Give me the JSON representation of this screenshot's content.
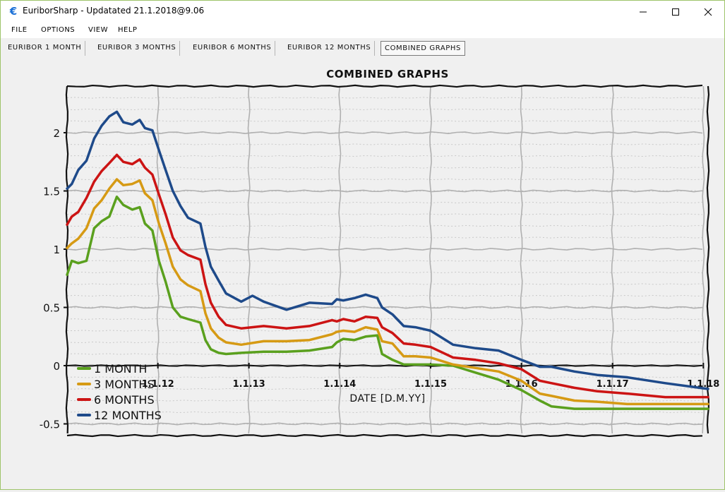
{
  "window": {
    "title": "EuriborSharp - Updatated 21.1.2018@9.06",
    "app_icon_glyph": "€"
  },
  "menu": {
    "items": [
      "FILE",
      "OPTIONS",
      "VIEW",
      "HELP"
    ]
  },
  "tabs": [
    {
      "label": "EURIBOR 1 MONTH",
      "selected": false
    },
    {
      "label": "EURIBOR 3 MONTHS",
      "selected": false
    },
    {
      "label": "EURIBOR 6 MONTHS",
      "selected": false
    },
    {
      "label": "EURIBOR 12 MONTHS",
      "selected": false
    },
    {
      "label": "COMBINED GRAPHS",
      "selected": true
    }
  ],
  "chart_data": {
    "type": "line",
    "title": "COMBINED GRAPHS",
    "xlabel": "DATE [D.M.YY]",
    "ylabel": "",
    "xlim": [
      "2011-01-01",
      "2018-01-20"
    ],
    "ylim": [
      -0.6,
      2.4
    ],
    "x_ticks": [
      {
        "date": "2012-01-01",
        "label": "1.1.12"
      },
      {
        "date": "2013-01-01",
        "label": "1.1.13"
      },
      {
        "date": "2014-01-01",
        "label": "1.1.14"
      },
      {
        "date": "2015-01-01",
        "label": "1.1.15"
      },
      {
        "date": "2016-01-01",
        "label": "1.1.16"
      },
      {
        "date": "2017-01-01",
        "label": "1.1.17"
      },
      {
        "date": "2018-01-01",
        "label": "1.1.18"
      }
    ],
    "y_ticks": [
      {
        "value": 2,
        "label": "2"
      },
      {
        "value": 1.5,
        "label": "1.5"
      },
      {
        "value": 1,
        "label": "1"
      },
      {
        "value": 0.5,
        "label": "0.5"
      },
      {
        "value": 0,
        "label": "0"
      },
      {
        "value": -0.5,
        "label": "-0.5"
      }
    ],
    "grid": true,
    "legend_position": "bottom-left",
    "series": [
      {
        "name": "1 MONTH",
        "color": "#5aa01e",
        "points": [
          [
            "2011-01-01",
            0.78
          ],
          [
            "2011-01-20",
            0.9
          ],
          [
            "2011-02-15",
            0.88
          ],
          [
            "2011-03-20",
            0.9
          ],
          [
            "2011-04-20",
            1.18
          ],
          [
            "2011-05-20",
            1.24
          ],
          [
            "2011-06-20",
            1.28
          ],
          [
            "2011-07-20",
            1.45
          ],
          [
            "2011-08-15",
            1.38
          ],
          [
            "2011-09-20",
            1.34
          ],
          [
            "2011-10-20",
            1.36
          ],
          [
            "2011-11-10",
            1.22
          ],
          [
            "2011-12-10",
            1.16
          ],
          [
            "2012-01-05",
            0.9
          ],
          [
            "2012-02-01",
            0.72
          ],
          [
            "2012-03-01",
            0.5
          ],
          [
            "2012-04-01",
            0.42
          ],
          [
            "2012-05-01",
            0.4
          ],
          [
            "2012-06-20",
            0.37
          ],
          [
            "2012-07-10",
            0.22
          ],
          [
            "2012-08-01",
            0.14
          ],
          [
            "2012-09-01",
            0.11
          ],
          [
            "2012-10-01",
            0.1
          ],
          [
            "2012-12-01",
            0.11
          ],
          [
            "2013-03-01",
            0.12
          ],
          [
            "2013-06-01",
            0.12
          ],
          [
            "2013-09-01",
            0.13
          ],
          [
            "2013-12-01",
            0.16
          ],
          [
            "2013-12-20",
            0.2
          ],
          [
            "2014-01-15",
            0.23
          ],
          [
            "2014-03-01",
            0.22
          ],
          [
            "2014-04-15",
            0.25
          ],
          [
            "2014-06-01",
            0.26
          ],
          [
            "2014-06-20",
            0.1
          ],
          [
            "2014-08-01",
            0.05
          ],
          [
            "2014-09-15",
            0.01
          ],
          [
            "2014-11-01",
            0.01
          ],
          [
            "2015-01-01",
            0.01
          ],
          [
            "2015-04-01",
            0.0
          ],
          [
            "2015-07-01",
            -0.06
          ],
          [
            "2015-10-01",
            -0.12
          ],
          [
            "2016-01-01",
            -0.21
          ],
          [
            "2016-03-15",
            -0.3
          ],
          [
            "2016-05-01",
            -0.35
          ],
          [
            "2016-08-01",
            -0.37
          ],
          [
            "2016-11-01",
            -0.37
          ],
          [
            "2017-03-01",
            -0.37
          ],
          [
            "2017-08-01",
            -0.37
          ],
          [
            "2018-01-20",
            -0.37
          ]
        ]
      },
      {
        "name": "3 MONTHS",
        "color": "#d69a14",
        "points": [
          [
            "2011-01-01",
            1.01
          ],
          [
            "2011-01-20",
            1.05
          ],
          [
            "2011-02-15",
            1.09
          ],
          [
            "2011-03-20",
            1.18
          ],
          [
            "2011-04-20",
            1.35
          ],
          [
            "2011-05-20",
            1.42
          ],
          [
            "2011-06-20",
            1.52
          ],
          [
            "2011-07-20",
            1.6
          ],
          [
            "2011-08-15",
            1.55
          ],
          [
            "2011-09-20",
            1.56
          ],
          [
            "2011-10-20",
            1.59
          ],
          [
            "2011-11-10",
            1.48
          ],
          [
            "2011-12-10",
            1.42
          ],
          [
            "2012-01-05",
            1.22
          ],
          [
            "2012-02-01",
            1.05
          ],
          [
            "2012-03-01",
            0.85
          ],
          [
            "2012-04-01",
            0.74
          ],
          [
            "2012-05-01",
            0.69
          ],
          [
            "2012-06-20",
            0.64
          ],
          [
            "2012-07-10",
            0.45
          ],
          [
            "2012-08-01",
            0.32
          ],
          [
            "2012-09-01",
            0.24
          ],
          [
            "2012-10-01",
            0.2
          ],
          [
            "2012-12-01",
            0.18
          ],
          [
            "2013-03-01",
            0.21
          ],
          [
            "2013-06-01",
            0.21
          ],
          [
            "2013-09-01",
            0.22
          ],
          [
            "2013-12-01",
            0.27
          ],
          [
            "2013-12-20",
            0.29
          ],
          [
            "2014-01-15",
            0.3
          ],
          [
            "2014-03-01",
            0.29
          ],
          [
            "2014-04-15",
            0.33
          ],
          [
            "2014-06-01",
            0.31
          ],
          [
            "2014-06-20",
            0.21
          ],
          [
            "2014-08-01",
            0.19
          ],
          [
            "2014-09-15",
            0.08
          ],
          [
            "2014-11-01",
            0.08
          ],
          [
            "2015-01-01",
            0.07
          ],
          [
            "2015-04-01",
            0.01
          ],
          [
            "2015-07-01",
            -0.02
          ],
          [
            "2015-10-01",
            -0.05
          ],
          [
            "2016-01-01",
            -0.13
          ],
          [
            "2016-03-15",
            -0.24
          ],
          [
            "2016-05-01",
            -0.26
          ],
          [
            "2016-08-01",
            -0.3
          ],
          [
            "2016-11-01",
            -0.31
          ],
          [
            "2017-03-01",
            -0.33
          ],
          [
            "2017-08-01",
            -0.33
          ],
          [
            "2018-01-20",
            -0.33
          ]
        ]
      },
      {
        "name": "6 MONTHS",
        "color": "#cc1414",
        "points": [
          [
            "2011-01-01",
            1.21
          ],
          [
            "2011-01-20",
            1.28
          ],
          [
            "2011-02-15",
            1.32
          ],
          [
            "2011-03-20",
            1.44
          ],
          [
            "2011-04-20",
            1.58
          ],
          [
            "2011-05-20",
            1.67
          ],
          [
            "2011-06-20",
            1.74
          ],
          [
            "2011-07-20",
            1.81
          ],
          [
            "2011-08-15",
            1.75
          ],
          [
            "2011-09-20",
            1.73
          ],
          [
            "2011-10-20",
            1.77
          ],
          [
            "2011-11-10",
            1.7
          ],
          [
            "2011-12-10",
            1.64
          ],
          [
            "2012-01-05",
            1.47
          ],
          [
            "2012-02-01",
            1.3
          ],
          [
            "2012-03-01",
            1.1
          ],
          [
            "2012-04-01",
            0.99
          ],
          [
            "2012-05-01",
            0.95
          ],
          [
            "2012-06-20",
            0.91
          ],
          [
            "2012-07-10",
            0.7
          ],
          [
            "2012-08-01",
            0.54
          ],
          [
            "2012-09-01",
            0.42
          ],
          [
            "2012-10-01",
            0.35
          ],
          [
            "2012-12-01",
            0.32
          ],
          [
            "2013-03-01",
            0.34
          ],
          [
            "2013-06-01",
            0.32
          ],
          [
            "2013-09-01",
            0.34
          ],
          [
            "2013-12-01",
            0.39
          ],
          [
            "2013-12-20",
            0.38
          ],
          [
            "2014-01-15",
            0.4
          ],
          [
            "2014-03-01",
            0.38
          ],
          [
            "2014-04-15",
            0.42
          ],
          [
            "2014-06-01",
            0.41
          ],
          [
            "2014-06-20",
            0.33
          ],
          [
            "2014-08-01",
            0.28
          ],
          [
            "2014-09-15",
            0.19
          ],
          [
            "2014-11-01",
            0.18
          ],
          [
            "2015-01-01",
            0.16
          ],
          [
            "2015-04-01",
            0.07
          ],
          [
            "2015-07-01",
            0.05
          ],
          [
            "2015-10-01",
            0.02
          ],
          [
            "2016-01-01",
            -0.03
          ],
          [
            "2016-03-15",
            -0.13
          ],
          [
            "2016-05-01",
            -0.15
          ],
          [
            "2016-08-01",
            -0.19
          ],
          [
            "2016-11-01",
            -0.22
          ],
          [
            "2017-03-01",
            -0.24
          ],
          [
            "2017-08-01",
            -0.27
          ],
          [
            "2018-01-20",
            -0.27
          ]
        ]
      },
      {
        "name": "12 MONTHS",
        "color": "#1e4a8a",
        "points": [
          [
            "2011-01-01",
            1.52
          ],
          [
            "2011-01-20",
            1.56
          ],
          [
            "2011-02-15",
            1.68
          ],
          [
            "2011-03-20",
            1.76
          ],
          [
            "2011-04-20",
            1.95
          ],
          [
            "2011-05-20",
            2.06
          ],
          [
            "2011-06-20",
            2.14
          ],
          [
            "2011-07-20",
            2.18
          ],
          [
            "2011-08-15",
            2.09
          ],
          [
            "2011-09-20",
            2.07
          ],
          [
            "2011-10-20",
            2.11
          ],
          [
            "2011-11-10",
            2.04
          ],
          [
            "2011-12-10",
            2.02
          ],
          [
            "2012-01-05",
            1.85
          ],
          [
            "2012-02-01",
            1.68
          ],
          [
            "2012-03-01",
            1.5
          ],
          [
            "2012-04-01",
            1.37
          ],
          [
            "2012-05-01",
            1.27
          ],
          [
            "2012-06-20",
            1.22
          ],
          [
            "2012-07-10",
            1.02
          ],
          [
            "2012-08-01",
            0.85
          ],
          [
            "2012-09-01",
            0.73
          ],
          [
            "2012-10-01",
            0.62
          ],
          [
            "2012-12-01",
            0.55
          ],
          [
            "2013-01-15",
            0.6
          ],
          [
            "2013-03-01",
            0.55
          ],
          [
            "2013-06-01",
            0.48
          ],
          [
            "2013-09-01",
            0.54
          ],
          [
            "2013-12-01",
            0.53
          ],
          [
            "2013-12-20",
            0.57
          ],
          [
            "2014-01-15",
            0.56
          ],
          [
            "2014-03-01",
            0.58
          ],
          [
            "2014-04-15",
            0.61
          ],
          [
            "2014-06-01",
            0.58
          ],
          [
            "2014-06-20",
            0.5
          ],
          [
            "2014-08-01",
            0.44
          ],
          [
            "2014-09-15",
            0.34
          ],
          [
            "2014-11-01",
            0.33
          ],
          [
            "2015-01-01",
            0.3
          ],
          [
            "2015-04-01",
            0.18
          ],
          [
            "2015-07-01",
            0.15
          ],
          [
            "2015-10-01",
            0.13
          ],
          [
            "2016-01-01",
            0.05
          ],
          [
            "2016-03-15",
            -0.01
          ],
          [
            "2016-05-01",
            -0.01
          ],
          [
            "2016-08-01",
            -0.05
          ],
          [
            "2016-11-01",
            -0.08
          ],
          [
            "2017-03-01",
            -0.1
          ],
          [
            "2017-08-01",
            -0.15
          ],
          [
            "2018-01-20",
            -0.2
          ]
        ]
      }
    ]
  }
}
